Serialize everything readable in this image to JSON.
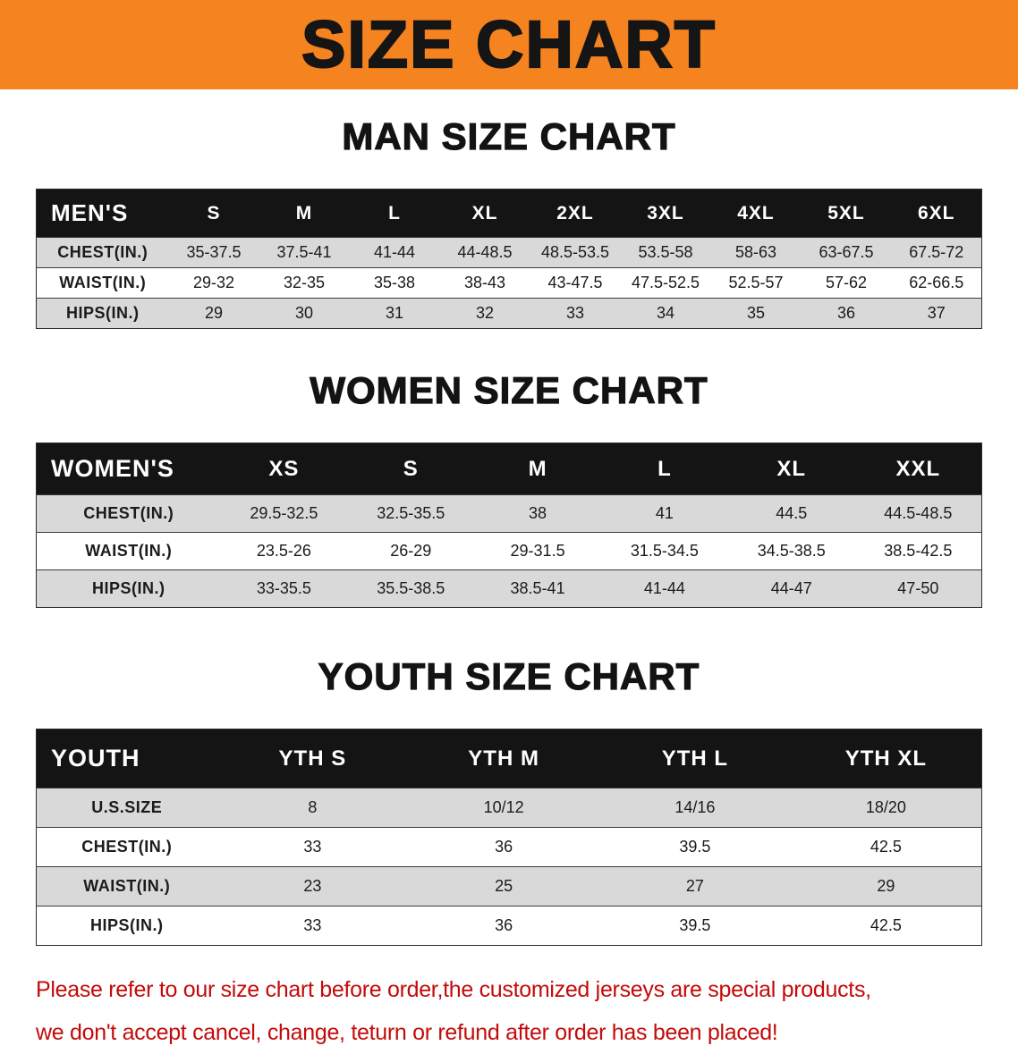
{
  "banner": {
    "title": "SIZE CHART"
  },
  "men": {
    "heading": "MAN SIZE CHART",
    "header": [
      "MEN'S",
      "S",
      "M",
      "L",
      "XL",
      "2XL",
      "3XL",
      "4XL",
      "5XL",
      "6XL"
    ],
    "rows": [
      {
        "label": "CHEST(IN.)",
        "values": [
          "35-37.5",
          "37.5-41",
          "41-44",
          "44-48.5",
          "48.5-53.5",
          "53.5-58",
          "58-63",
          "63-67.5",
          "67.5-72"
        ]
      },
      {
        "label": "WAIST(IN.)",
        "values": [
          "29-32",
          "32-35",
          "35-38",
          "38-43",
          "43-47.5",
          "47.5-52.5",
          "52.5-57",
          "57-62",
          "62-66.5"
        ]
      },
      {
        "label": "HIPS(IN.)",
        "values": [
          "29",
          "30",
          "31",
          "32",
          "33",
          "34",
          "35",
          "36",
          "37"
        ]
      }
    ]
  },
  "women": {
    "heading": "WOMEN SIZE CHART",
    "header": [
      "WOMEN'S",
      "XS",
      "S",
      "M",
      "L",
      "XL",
      "XXL"
    ],
    "rows": [
      {
        "label": "CHEST(IN.)",
        "values": [
          "29.5-32.5",
          "32.5-35.5",
          "38",
          "41",
          "44.5",
          "44.5-48.5"
        ]
      },
      {
        "label": "WAIST(IN.)",
        "values": [
          "23.5-26",
          "26-29",
          "29-31.5",
          "31.5-34.5",
          "34.5-38.5",
          "38.5-42.5"
        ]
      },
      {
        "label": "HIPS(IN.)",
        "values": [
          "33-35.5",
          "35.5-38.5",
          "38.5-41",
          "41-44",
          "44-47",
          "47-50"
        ]
      }
    ]
  },
  "youth": {
    "heading": "YOUTH SIZE CHART",
    "header": [
      "YOUTH",
      "YTH S",
      "YTH M",
      "YTH L",
      "YTH XL"
    ],
    "rows": [
      {
        "label": "U.S.SIZE",
        "values": [
          "8",
          "10/12",
          "14/16",
          "18/20"
        ]
      },
      {
        "label": "CHEST(IN.)",
        "values": [
          "33",
          "36",
          "39.5",
          "42.5"
        ]
      },
      {
        "label": "WAIST(IN.)",
        "values": [
          "23",
          "25",
          "27",
          "29"
        ]
      },
      {
        "label": "HIPS(IN.)",
        "values": [
          "33",
          "36",
          "39.5",
          "42.5"
        ]
      }
    ]
  },
  "footer": {
    "line1": "Please refer to our size chart before order,the customized jerseys are special products,",
    "line2": "we don't accept cancel, change, teturn or refund after order has been placed!"
  },
  "colors": {
    "banner_orange": "#f5831f",
    "header_black": "#141414",
    "row_gray": "#d9d9d9",
    "notice_red": "#c40a0a"
  }
}
